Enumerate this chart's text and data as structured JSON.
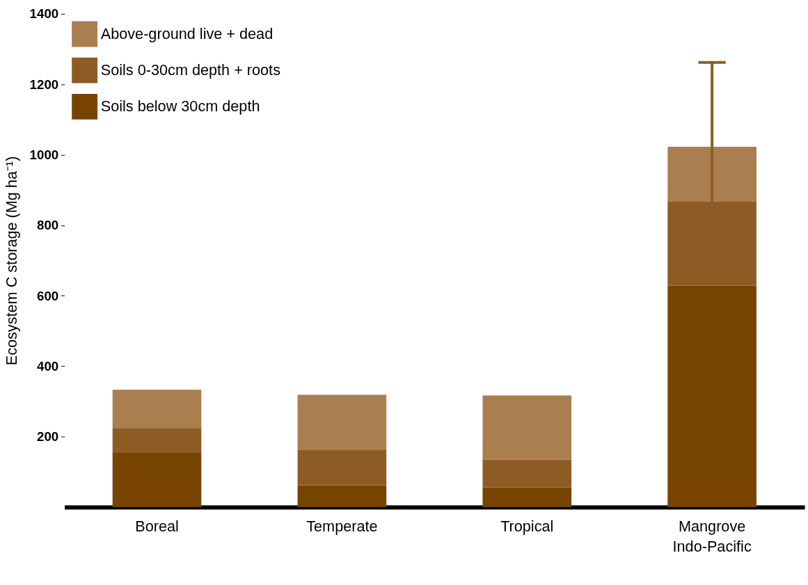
{
  "chart_data": {
    "type": "bar",
    "stacked": true,
    "ylabel": "Ecosystem C storage (Mg ha⁻¹)",
    "categories": [
      "Boreal",
      "Temperate",
      "Tropical",
      "Mangrove\nIndo-Pacific"
    ],
    "series": [
      {
        "name": "Soils below 30cm depth",
        "color": "#774300",
        "values": [
          154,
          62,
          56,
          629
        ]
      },
      {
        "name": "Soils 0-30cm depth + roots",
        "color": "#8d5c24",
        "values": [
          69,
          100,
          79,
          238
        ],
        "errors": [
          null,
          null,
          null,
          [
            867,
            1262
          ]
        ]
      },
      {
        "name": "Above-ground live + dead",
        "color": "#a97f4f",
        "values": [
          110,
          157,
          182,
          156
        ]
      }
    ],
    "ylim": [
      0,
      1400
    ],
    "yticks": [
      200,
      400,
      600,
      800,
      1000,
      1200,
      1400
    ],
    "grid": false,
    "legend": "top left"
  }
}
